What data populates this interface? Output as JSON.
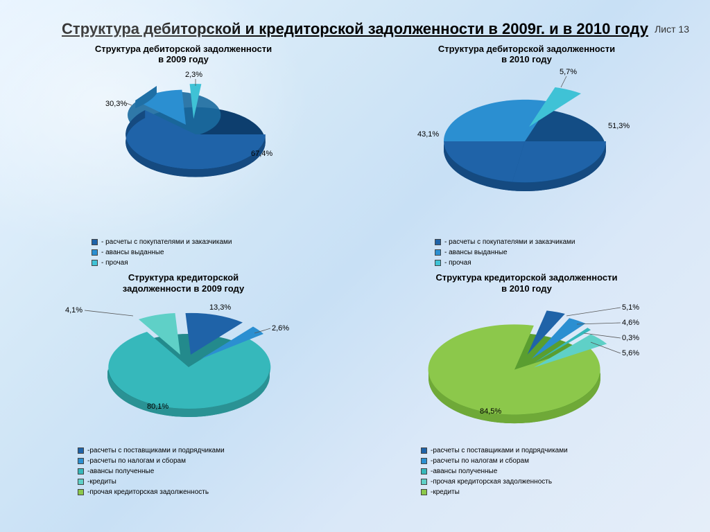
{
  "page_label": "Лист 13",
  "main_title": "Структура дебиторской и кредиторской задолженности\nв 2009г. и в 2010 году",
  "colors": {
    "deep_blue": "#1f63a8",
    "mid_blue": "#2b8fd1",
    "cyan": "#3fc2d6",
    "teal": "#36b8bb",
    "light_teal": "#5fd0c7",
    "lime": "#8cc84b",
    "green": "#6cbf3f"
  },
  "charts": {
    "deb2009": {
      "title": "Структура дебиторской задолженности\nв 2009 году",
      "type": "pie-3d-exploded",
      "slices": [
        {
          "label": "67,4%",
          "value": 67.4,
          "color": "#1f63a8",
          "exploded": false
        },
        {
          "label": "30,3%",
          "value": 30.3,
          "color": "#2b8fd1",
          "exploded": true
        },
        {
          "label": "2,3%",
          "value": 2.3,
          "color": "#3fc2d6",
          "exploded": true
        }
      ],
      "legend": [
        {
          "color": "#1f63a8",
          "text": "- расчеты с покупателями и заказчиками"
        },
        {
          "color": "#2b8fd1",
          "text": "- авансы выданные"
        },
        {
          "color": "#3fc2d6",
          "text": "- прочая"
        }
      ]
    },
    "deb2010": {
      "title": "Структура дебиторской задолженности\nв 2010 году",
      "type": "pie-3d-exploded",
      "slices": [
        {
          "label": "51,3%",
          "value": 51.3,
          "color": "#1f63a8",
          "exploded": false
        },
        {
          "label": "43,1%",
          "value": 43.1,
          "color": "#2b8fd1",
          "exploded": false
        },
        {
          "label": "5,7%",
          "value": 5.7,
          "color": "#3fc2d6",
          "exploded": true
        }
      ],
      "legend": [
        {
          "color": "#1f63a8",
          "text": "- расчеты с покупателями и заказчиками"
        },
        {
          "color": "#2b8fd1",
          "text": "- авансы выданные"
        },
        {
          "color": "#3fc2d6",
          "text": "- прочая"
        }
      ]
    },
    "cred2009": {
      "title": "Структура кредиторской\nзадолженности в 2009 году",
      "type": "pie-3d-exploded",
      "slices": [
        {
          "label": "13,3%",
          "value": 13.3,
          "color": "#1f63a8",
          "exploded": true
        },
        {
          "label": "2,6%",
          "value": 2.6,
          "color": "#2b8fd1",
          "exploded": true
        },
        {
          "label": "80,1%",
          "value": 80.1,
          "color": "#36b8bb",
          "exploded": false
        },
        {
          "label": "4,1%",
          "value": 4.1,
          "color": "#5fd0c7",
          "exploded": true
        }
      ],
      "legend": [
        {
          "color": "#1f63a8",
          "text": "-расчеты с поставщиками и подрядчиками"
        },
        {
          "color": "#2b8fd1",
          "text": "-расчеты по налогам и сборам"
        },
        {
          "color": "#36b8bb",
          "text": "-авансы полученные"
        },
        {
          "color": "#5fd0c7",
          "text": "-кредиты"
        },
        {
          "color": "#8cc84b",
          "text": "-прочая кредиторская задолженность"
        }
      ]
    },
    "cred2010": {
      "title": "Структура кредиторской задолженности\nв 2010 году",
      "type": "pie-3d-exploded",
      "slices": [
        {
          "label": "5,1%",
          "value": 5.1,
          "color": "#1f63a8",
          "exploded": true
        },
        {
          "label": "4,6%",
          "value": 4.6,
          "color": "#2b8fd1",
          "exploded": true
        },
        {
          "label": "0,3%",
          "value": 0.3,
          "color": "#36b8bb",
          "exploded": true
        },
        {
          "label": "5,6%",
          "value": 5.6,
          "color": "#5fd0c7",
          "exploded": true
        },
        {
          "label": "84,5%",
          "value": 84.5,
          "color": "#8cc84b",
          "exploded": false
        }
      ],
      "legend": [
        {
          "color": "#1f63a8",
          "text": "-расчеты с поставщиками и подрядчиками"
        },
        {
          "color": "#2b8fd1",
          "text": "-расчеты по налогам и сборам"
        },
        {
          "color": "#36b8bb",
          "text": "-авансы полученные"
        },
        {
          "color": "#5fd0c7",
          "text": "-прочая кредиторская задолженность"
        },
        {
          "color": "#8cc84b",
          "text": "-кредиты"
        }
      ]
    }
  }
}
